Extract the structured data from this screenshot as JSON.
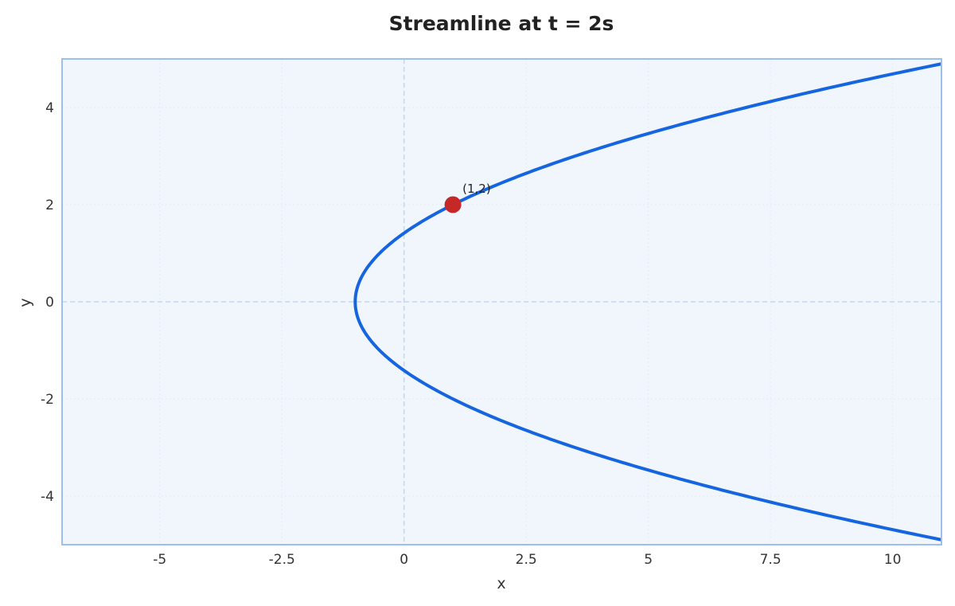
{
  "chart_data": {
    "type": "line",
    "title": "Streamline at t = 2s",
    "xlabel": "x",
    "ylabel": "y",
    "xlim": [
      -7,
      11
    ],
    "ylim": [
      -5,
      5
    ],
    "x_ticks": [
      -5,
      -2.5,
      0,
      2.5,
      5,
      7.5,
      10
    ],
    "x_tick_labels": [
      "-5",
      "-2.5",
      "0",
      "2.5",
      "5",
      "7.5",
      "10"
    ],
    "y_ticks": [
      -4,
      -2,
      0,
      2,
      4
    ],
    "y_tick_labels": [
      "-4",
      "-2",
      "0",
      "2",
      "4"
    ],
    "grid": true,
    "reference_lines": [
      {
        "axis": "x",
        "value": 0,
        "style": "dashed"
      },
      {
        "axis": "y",
        "value": 0,
        "style": "dashed"
      }
    ],
    "series": [
      {
        "equation": "x = y^2/2 - 1",
        "y_range": [
          -5,
          5
        ],
        "sample_points": [
          {
            "x": 11.5,
            "y": -5
          },
          {
            "x": 7,
            "y": -4
          },
          {
            "x": 3.5,
            "y": -3
          },
          {
            "x": 1,
            "y": -2
          },
          {
            "x": -0.5,
            "y": -1
          },
          {
            "x": -1,
            "y": 0
          },
          {
            "x": -0.5,
            "y": 1
          },
          {
            "x": 1,
            "y": 2
          },
          {
            "x": 3.5,
            "y": 3
          },
          {
            "x": 7,
            "y": 4
          },
          {
            "x": 11.5,
            "y": 5
          }
        ],
        "color": "#1565e0"
      }
    ],
    "highlight_point": {
      "x": 1,
      "y": 2,
      "label": "(1,2)",
      "color": "#c62828"
    },
    "colors": {
      "plot_background": "#f0f6fc",
      "frame": "#9dbff0",
      "reference_line": "#c4d9f0",
      "grid": "#e2ebf5"
    }
  }
}
